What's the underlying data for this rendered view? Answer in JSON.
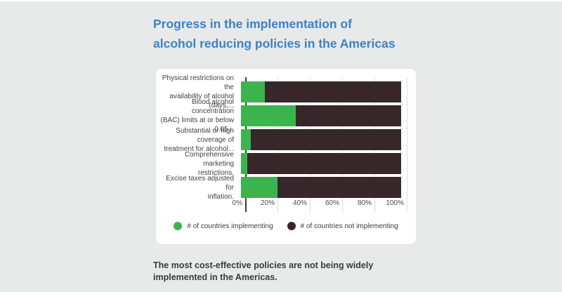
{
  "page": {
    "title_line1": "Progress in the implementation of",
    "title_line2": "alcohol reducing policies in the Americas",
    "caption_line1": "The most cost-effective policies are not being widely",
    "caption_line2": "implemented in the Americas."
  },
  "colors": {
    "accent_blue": "#3d82c4",
    "green": "#3cb44e",
    "dark": "#38272a",
    "background": "#e8e9e9",
    "card": "#ffffff"
  },
  "chart_data": {
    "type": "bar",
    "orientation": "horizontal",
    "stacked": true,
    "title": "Progress in the implementation of alcohol reducing policies in the Americas",
    "xlabel": "",
    "ylabel": "",
    "xlim": [
      0,
      100
    ],
    "x_ticks": [
      "0%",
      "20%",
      "40%",
      "60%",
      "80%",
      "100%"
    ],
    "grid": "vertical",
    "legend_position": "bottom",
    "categories": [
      "Physical restrictions on the availability of alcohol (days,...",
      "Blood alcohol concentration (BAC) limits at or below 0.05...",
      "Substantial or high coverage of treatment for alcohol...",
      "Comprehensive marketing restrictions.",
      "Excise taxes adjusted for inflation."
    ],
    "category_lines": [
      [
        "Physical restrictions on the",
        "availability of alcohol (days,..."
      ],
      [
        "Blood alcohol concentration",
        "(BAC) limits at or below 0.05..."
      ],
      [
        "Substantial or high coverage of",
        "treatment for alcohol..."
      ],
      [
        "Comprehensive marketing",
        "restrictions."
      ],
      [
        "Excise taxes adjusted for",
        "inflation."
      ]
    ],
    "series": [
      {
        "name": "# of countries implementing",
        "color": "#3cb44e",
        "values": [
          15,
          34,
          6,
          4,
          23
        ]
      },
      {
        "name": "# of countries not implementing",
        "color": "#38272a",
        "values": [
          85,
          66,
          94,
          96,
          77
        ]
      }
    ],
    "unit": "percent of countries (values estimated from axis)"
  }
}
